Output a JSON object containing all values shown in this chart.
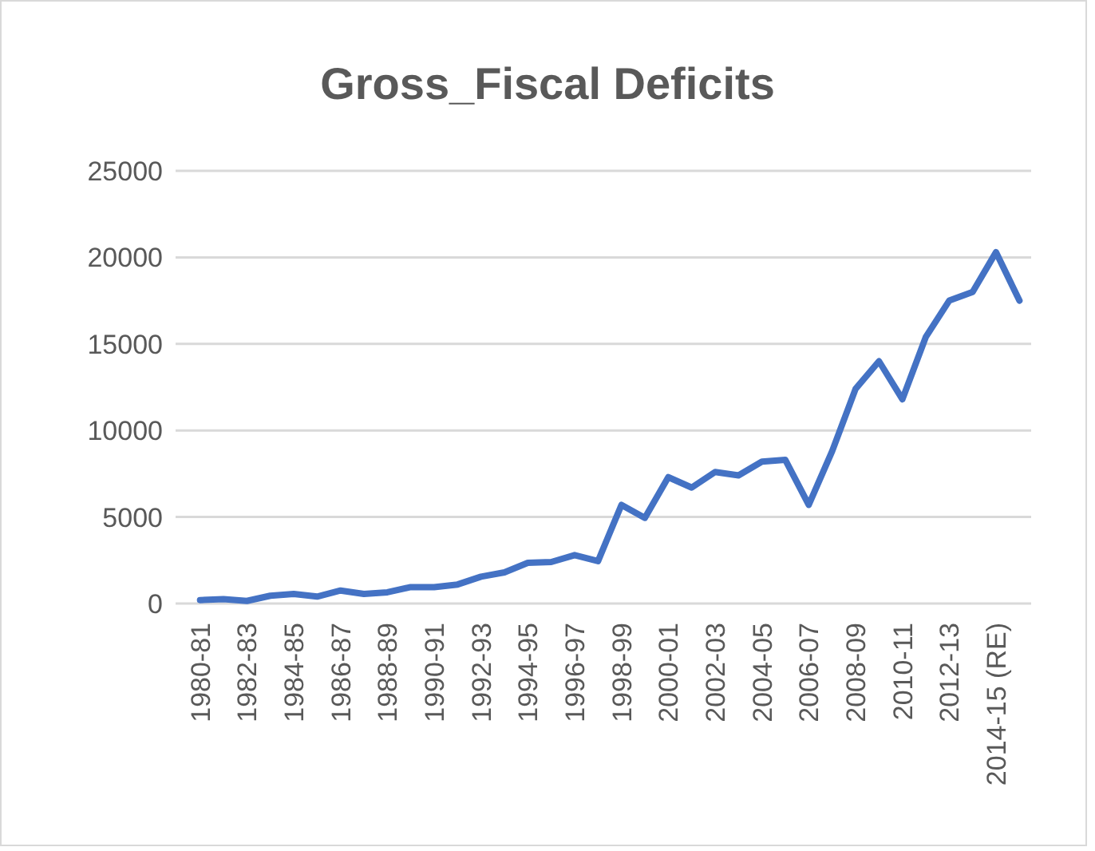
{
  "chart_data": {
    "type": "line",
    "title": "Gross_Fiscal Deficits",
    "categories": [
      "1980-81",
      null,
      "1982-83",
      null,
      "1984-85",
      null,
      "1986-87",
      null,
      "1988-89",
      null,
      "1990-91",
      null,
      "1992-93",
      null,
      "1994-95",
      null,
      "1996-97",
      null,
      "1998-99",
      null,
      "2000-01",
      null,
      "2002-03",
      null,
      "2004-05",
      null,
      "2006-07",
      null,
      "2008-09",
      null,
      "2010-11",
      null,
      "2012-13",
      null,
      "2014-15 (RE)",
      null
    ],
    "series": [
      {
        "color": "#4472c4",
        "values": [
          200,
          250,
          150,
          450,
          550,
          400,
          750,
          550,
          650,
          950,
          950,
          1100,
          1550,
          1800,
          2350,
          2400,
          2800,
          2450,
          5700,
          4950,
          7300,
          6700,
          7600,
          7400,
          8200,
          8300,
          5700,
          8800,
          12400,
          14000,
          11800,
          15400,
          17500,
          18000,
          20300,
          17500
        ]
      }
    ],
    "ylim": [
      0,
      25000
    ],
    "yticks": [
      0,
      5000,
      10000,
      15000,
      20000,
      25000
    ],
    "grid": "y",
    "marker": "none",
    "line_style": "solid"
  }
}
